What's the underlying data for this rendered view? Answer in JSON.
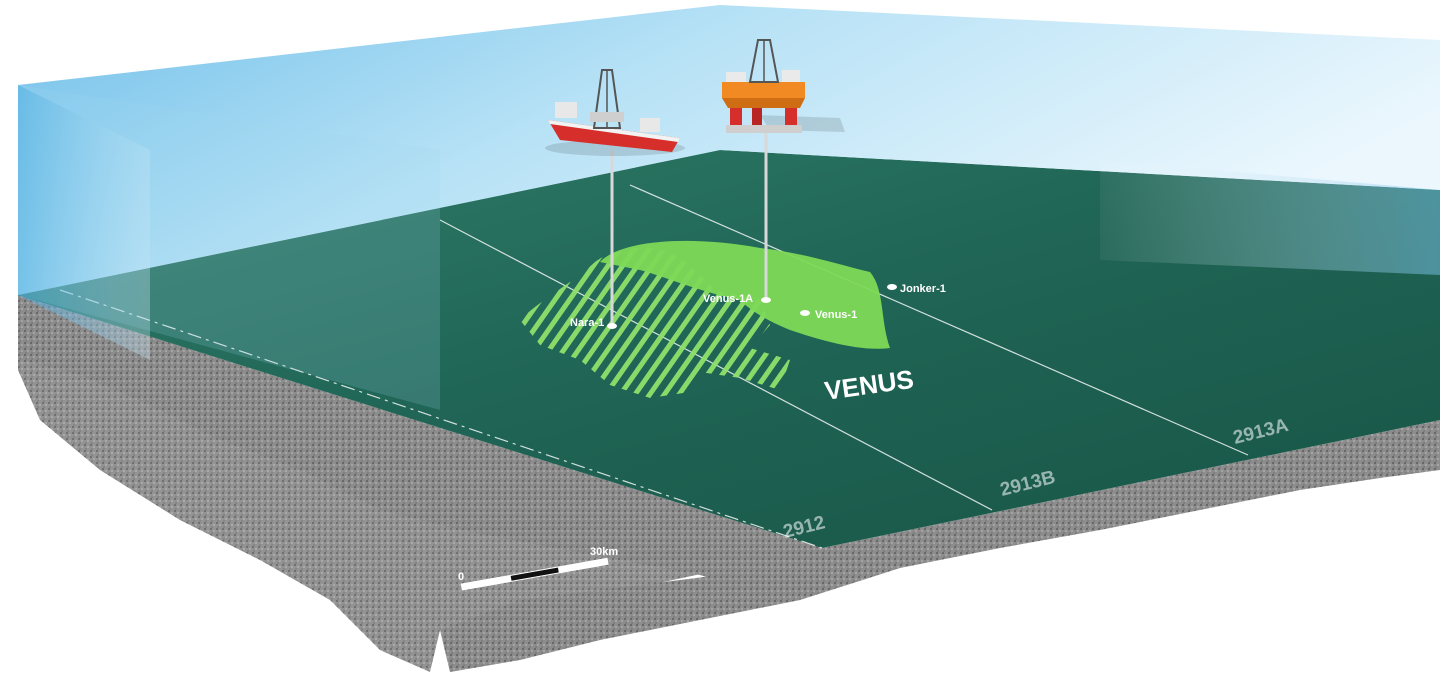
{
  "field_name": "VENUS",
  "wells": [
    {
      "name": "Nara-1"
    },
    {
      "name": "Venus-1A"
    },
    {
      "name": "Venus-1"
    },
    {
      "name": "Jonker-1"
    }
  ],
  "blocks": [
    "2912",
    "2913B",
    "2913A"
  ],
  "scale_bar": {
    "start_label": "0",
    "end_label": "30km"
  },
  "icons": [
    "drillship-icon",
    "semi-submersible-rig-icon"
  ],
  "colors": {
    "water": "#8fd1ef",
    "seabed": "#1f6152",
    "field_fill": "#7ed957",
    "rock": "#8c8c8c"
  }
}
